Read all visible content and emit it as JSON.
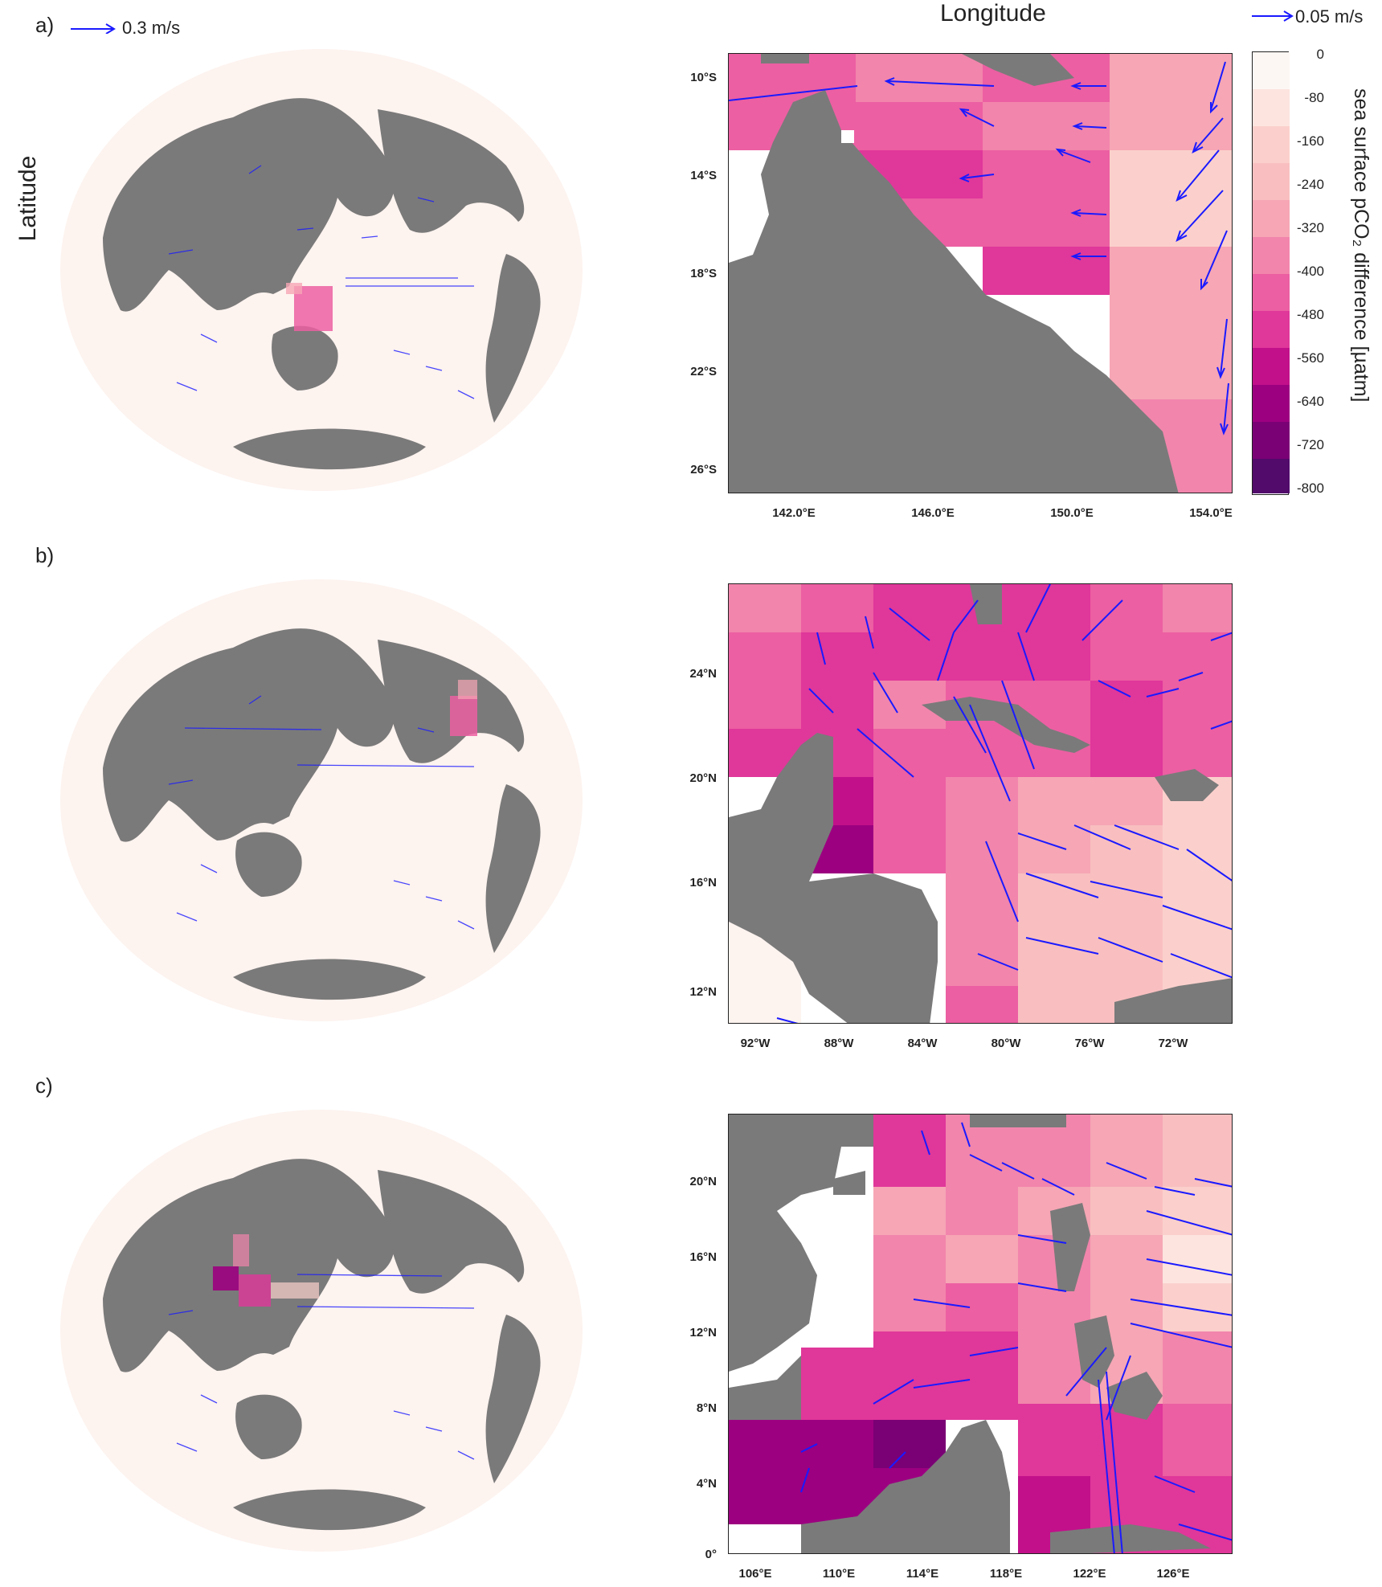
{
  "figure": {
    "panel_labels": [
      "a)",
      "b)",
      "c)"
    ],
    "y_axis_title": "Latitude",
    "x_axis_title": "Longitude",
    "global_ref_vector": "0.3 m/s",
    "regional_ref_vector": "0.05 m/s",
    "colors": {
      "land": "#7a7a7a",
      "ocean_low": "#fdf3ef",
      "vector": "#1a1aff",
      "frame": "#222222"
    }
  },
  "panels": [
    {
      "id": "a",
      "y_ticks": [
        "10°S",
        "14°S",
        "18°S",
        "22°S",
        "26°S"
      ],
      "x_ticks": [
        "142.0°E",
        "146.0°E",
        "150.0°E",
        "154.0°E"
      ]
    },
    {
      "id": "b",
      "y_ticks": [
        "24°N",
        "20°N",
        "16°N",
        "12°N"
      ],
      "x_ticks": [
        "92°W",
        "88°W",
        "84°W",
        "80°W",
        "76°W",
        "72°W"
      ]
    },
    {
      "id": "c",
      "y_ticks": [
        "20°N",
        "16°N",
        "12°N",
        "8°N",
        "4°N",
        "0°"
      ],
      "x_ticks": [
        "106°E",
        "110°E",
        "114°E",
        "118°E",
        "122°E",
        "126°E"
      ]
    }
  ],
  "colorbar": {
    "title": "sea surface pCO₂ difference [µatm]",
    "labels": [
      "0",
      "-80",
      "-160",
      "-240",
      "-320",
      "-400",
      "-480",
      "-560",
      "-640",
      "-720",
      "-800"
    ],
    "colors": [
      "#fdf7f4",
      "#fde4df",
      "#fbd0cc",
      "#f9bfc0",
      "#f6a6b5",
      "#f285ac",
      "#ec5fa2",
      "#e0379a",
      "#c2108a",
      "#9c0080",
      "#7a0075",
      "#520a6b"
    ]
  }
}
